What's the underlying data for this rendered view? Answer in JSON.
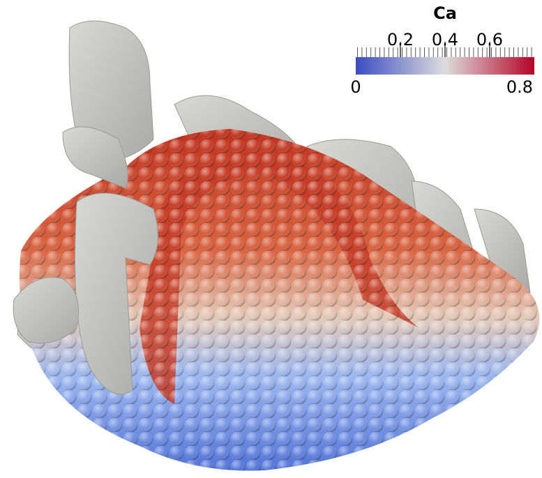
{
  "colorbar": {
    "title": "Ca",
    "range": [
      0,
      0.8
    ],
    "ticks": [
      0.2,
      0.4,
      0.6
    ],
    "colormap": [
      "#3b4cc0",
      "#dddddd",
      "#b40426"
    ]
  }
}
